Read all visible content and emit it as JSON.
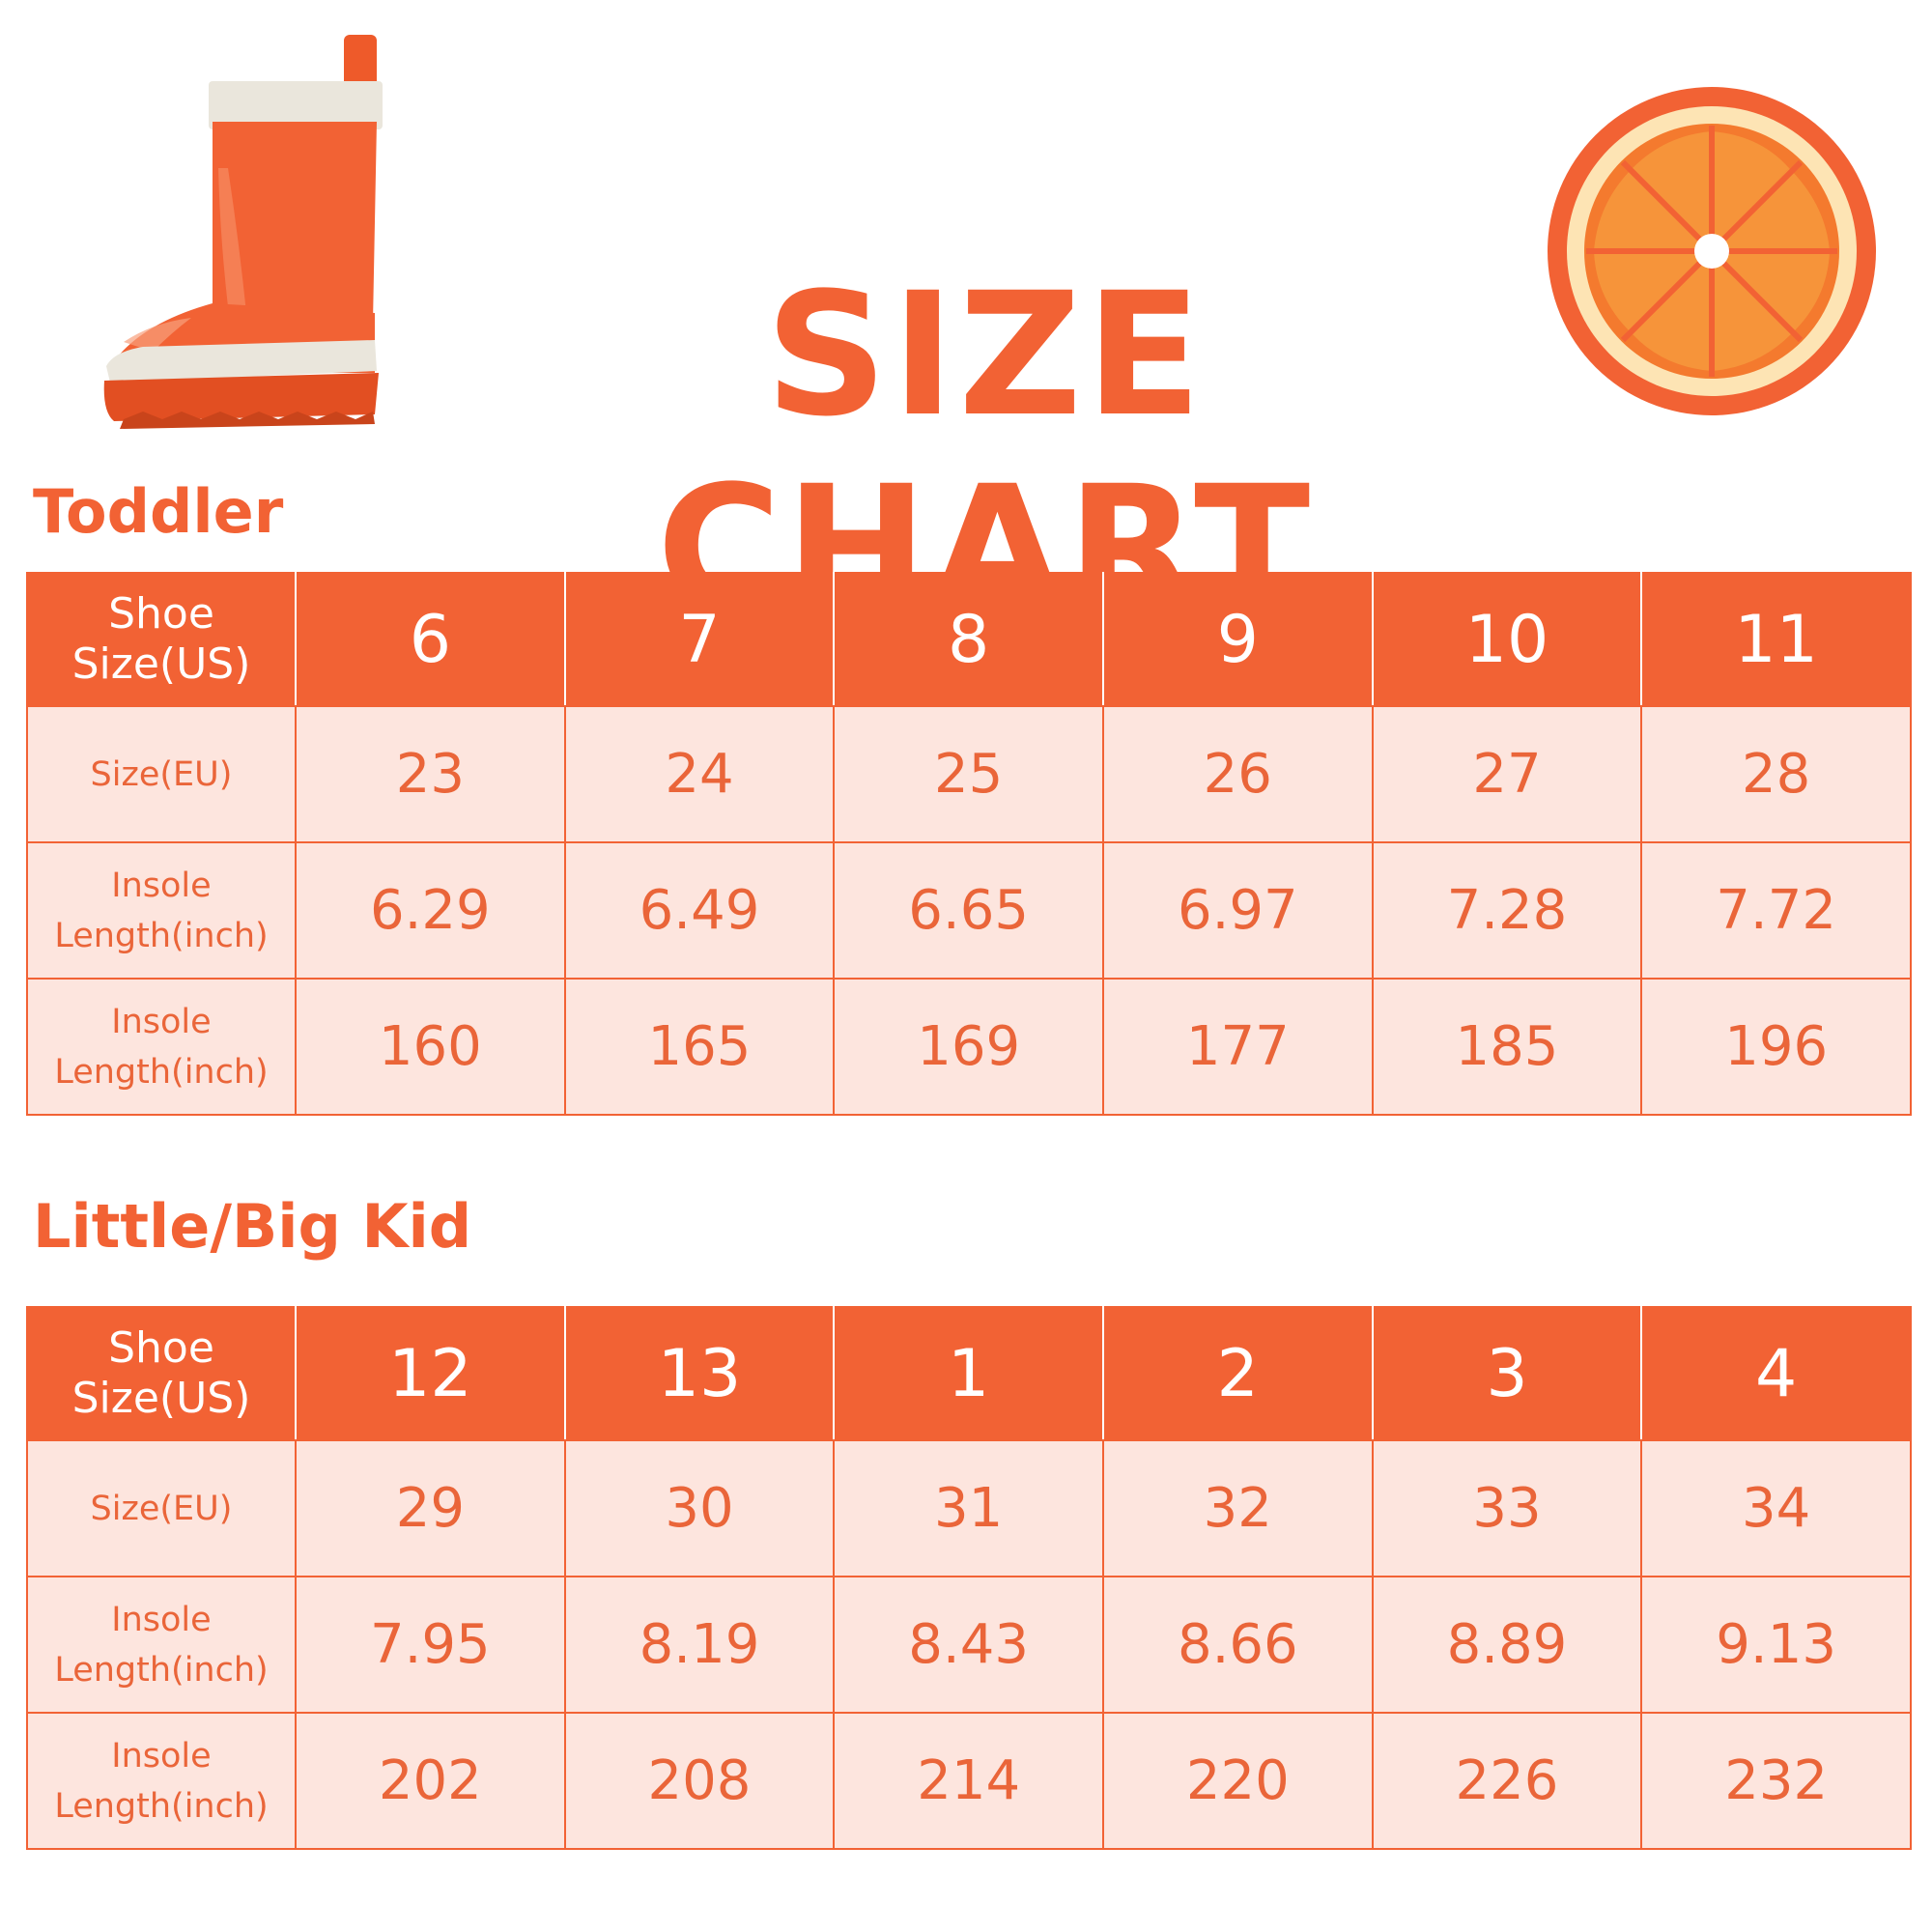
{
  "header": {
    "title": "SIZE CHART"
  },
  "icons": {
    "boot": "rain-boot-icon",
    "orange": "orange-slice-icon"
  },
  "colors": {
    "accent": "#f26234",
    "row_bg": "#fde5de",
    "text": "#ea6539"
  },
  "sections": [
    {
      "title": "Toddler",
      "header_label": [
        "Shoe",
        "Size(US)"
      ],
      "us_sizes": [
        "6",
        "7",
        "8",
        "9",
        "10",
        "11"
      ],
      "rows": [
        {
          "label": [
            "Size(EU)"
          ],
          "values": [
            "23",
            "24",
            "25",
            "26",
            "27",
            "28"
          ]
        },
        {
          "label": [
            "Insole",
            "Length(inch)"
          ],
          "values": [
            "6.29",
            "6.49",
            "6.65",
            "6.97",
            "7.28",
            "7.72"
          ]
        },
        {
          "label": [
            "Insole",
            "Length(inch)"
          ],
          "values": [
            "160",
            "165",
            "169",
            "177",
            "185",
            "196"
          ]
        }
      ]
    },
    {
      "title": "Little/Big Kid",
      "header_label": [
        "Shoe",
        "Size(US)"
      ],
      "us_sizes": [
        "12",
        "13",
        "1",
        "2",
        "3",
        "4"
      ],
      "rows": [
        {
          "label": [
            "Size(EU)"
          ],
          "values": [
            "29",
            "30",
            "31",
            "32",
            "33",
            "34"
          ]
        },
        {
          "label": [
            "Insole",
            "Length(inch)"
          ],
          "values": [
            "7.95",
            "8.19",
            "8.43",
            "8.66",
            "8.89",
            "9.13"
          ]
        },
        {
          "label": [
            "Insole",
            "Length(inch)"
          ],
          "values": [
            "202",
            "208",
            "214",
            "220",
            "226",
            "232"
          ]
        }
      ]
    }
  ]
}
